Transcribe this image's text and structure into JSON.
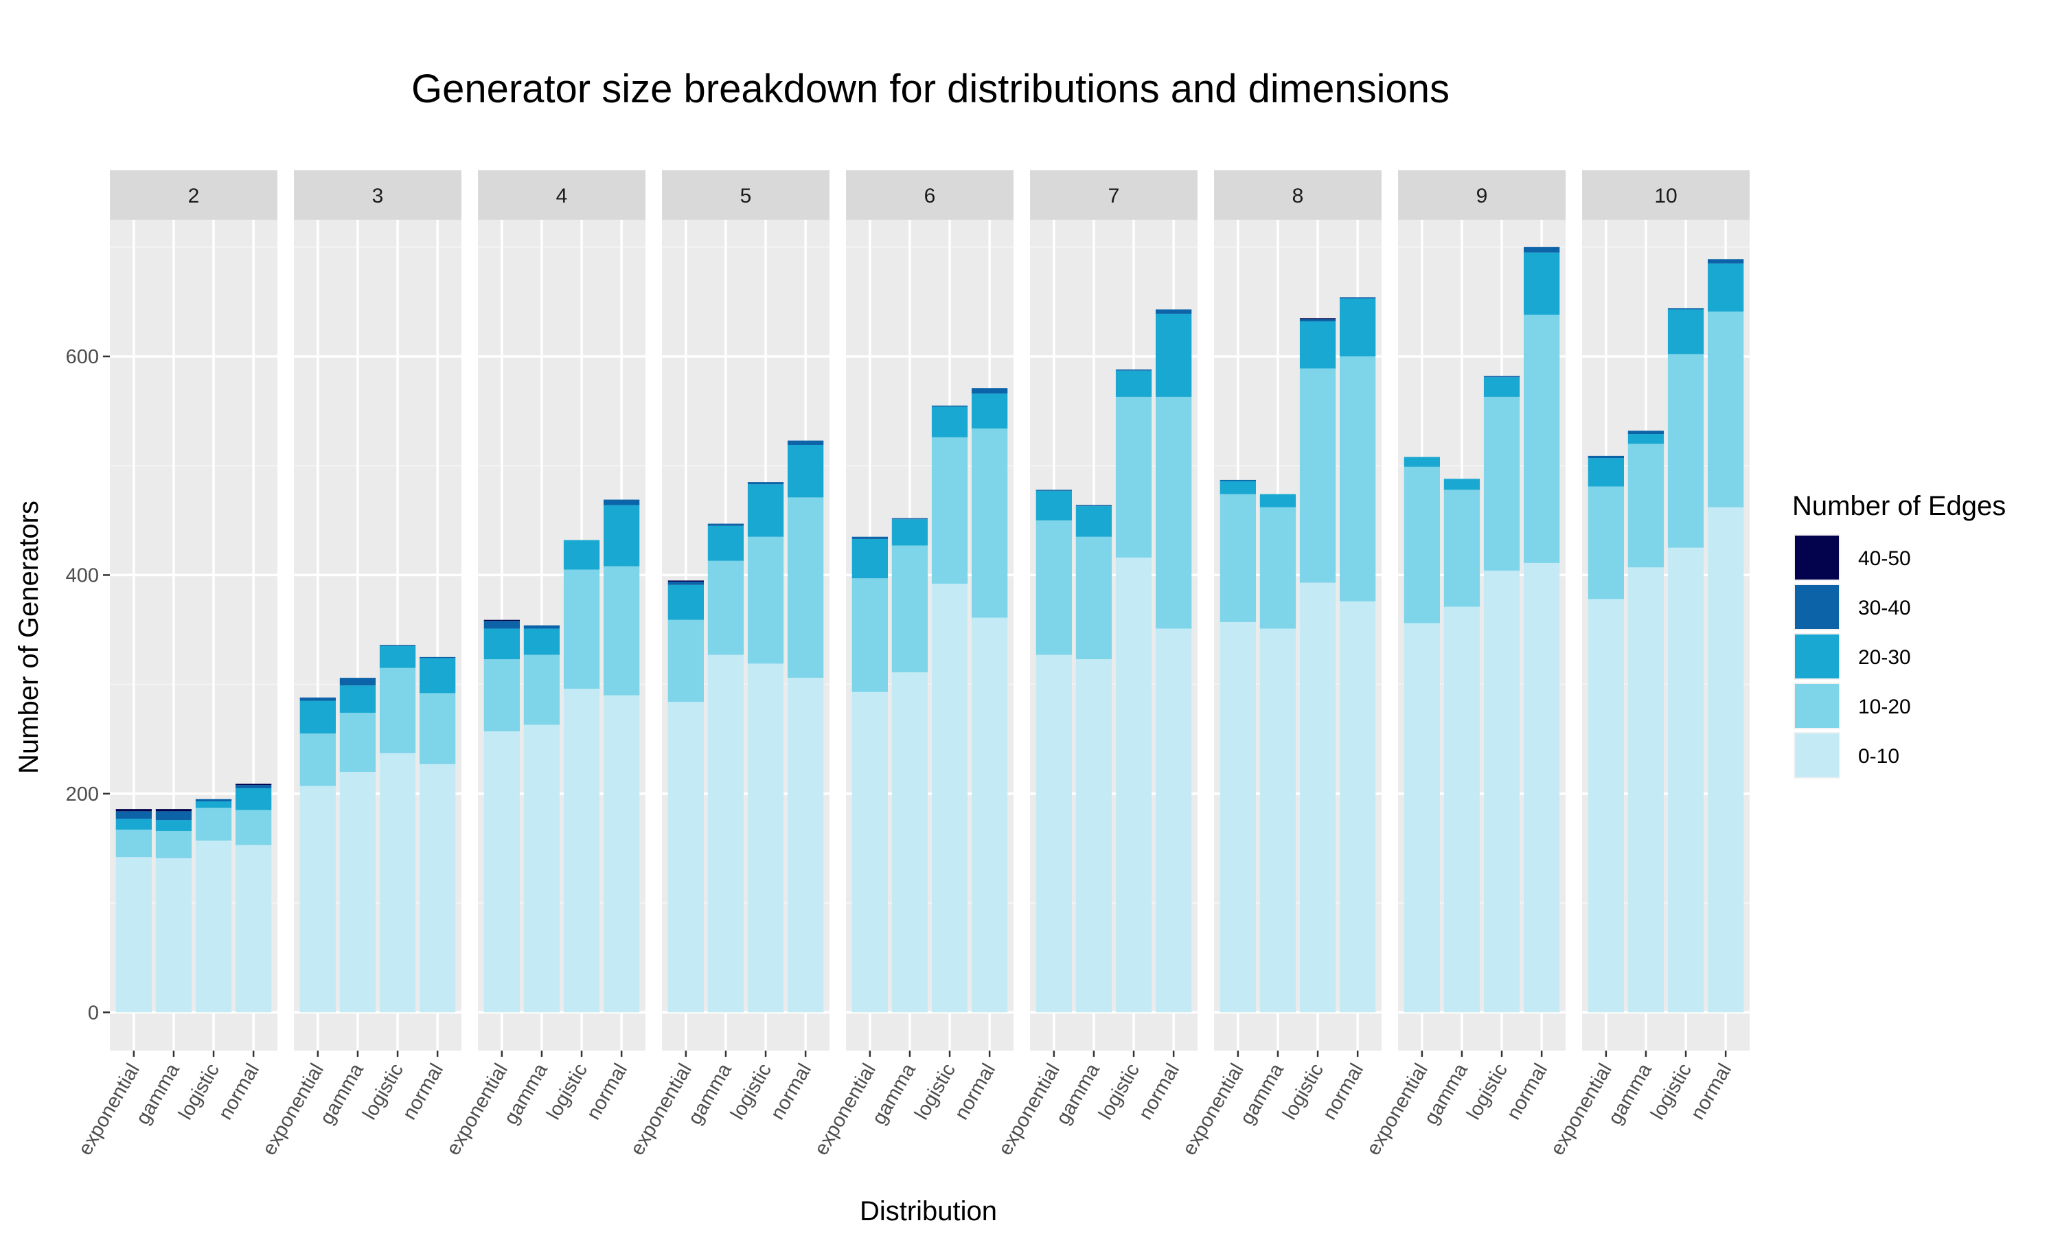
{
  "chart_data": {
    "type": "bar",
    "stacked": true,
    "title": "Generator size breakdown for distributions and dimensions",
    "xlabel": "Distribution",
    "ylabel": "Number of Generators",
    "ylim": [
      -35,
      725
    ],
    "yticks": [
      0,
      200,
      400,
      600
    ],
    "grid": true,
    "legend_placement": "right",
    "legend_title": "Number of Edges",
    "categories": [
      "exponential",
      "gamma",
      "logistic",
      "normal"
    ],
    "panels": [
      "2",
      "3",
      "4",
      "5",
      "6",
      "7",
      "8",
      "9",
      "10"
    ],
    "series": [
      {
        "name": "0-10",
        "color": "#c4ebf5",
        "values": [
          [
            142,
            141,
            157,
            153
          ],
          [
            207,
            220,
            237,
            227
          ],
          [
            257,
            263,
            296,
            290
          ],
          [
            284,
            327,
            319,
            306
          ],
          [
            293,
            311,
            392,
            361
          ],
          [
            327,
            323,
            416,
            351
          ],
          [
            357,
            351,
            393,
            376
          ],
          [
            356,
            371,
            404,
            411
          ],
          [
            378,
            407,
            425,
            462
          ]
        ]
      },
      {
        "name": "10-20",
        "color": "#7ed5ea",
        "values": [
          [
            25,
            25,
            30,
            32
          ],
          [
            48,
            54,
            78,
            65
          ],
          [
            66,
            64,
            109,
            118
          ],
          [
            75,
            86,
            116,
            165
          ],
          [
            104,
            116,
            134,
            173
          ],
          [
            123,
            112,
            147,
            212
          ],
          [
            117,
            111,
            196,
            224
          ],
          [
            143,
            107,
            159,
            227
          ],
          [
            103,
            113,
            177,
            179
          ]
        ]
      },
      {
        "name": "20-30",
        "color": "#19a8d1",
        "values": [
          [
            10,
            10,
            6,
            20
          ],
          [
            30,
            25,
            20,
            32
          ],
          [
            28,
            24,
            27,
            56
          ],
          [
            32,
            32,
            48,
            48
          ],
          [
            36,
            24,
            28,
            32
          ],
          [
            27,
            28,
            24,
            76
          ],
          [
            12,
            12,
            43,
            53
          ],
          [
            9,
            10,
            18,
            57
          ],
          [
            26,
            9,
            41,
            44
          ]
        ]
      },
      {
        "name": "30-40",
        "color": "#0c63a8",
        "values": [
          [
            7,
            8,
            2,
            3
          ],
          [
            3,
            7,
            1,
            1
          ],
          [
            7,
            3,
            0,
            5
          ],
          [
            3,
            2,
            2,
            4
          ],
          [
            2,
            1,
            1,
            5
          ],
          [
            1,
            1,
            1,
            4
          ],
          [
            1,
            0,
            2,
            1
          ],
          [
            0,
            0,
            1,
            5
          ],
          [
            2,
            3,
            1,
            4
          ]
        ]
      },
      {
        "name": "40-50",
        "color": "#03034d",
        "values": [
          [
            2,
            2,
            0,
            1
          ],
          [
            0,
            0,
            0,
            0
          ],
          [
            1,
            0,
            0,
            0
          ],
          [
            1,
            0,
            0,
            0
          ],
          [
            0,
            0,
            0,
            0
          ],
          [
            0,
            0,
            0,
            0
          ],
          [
            0,
            0,
            1,
            0
          ],
          [
            0,
            0,
            0,
            0
          ],
          [
            0,
            0,
            0,
            0
          ]
        ]
      }
    ]
  }
}
